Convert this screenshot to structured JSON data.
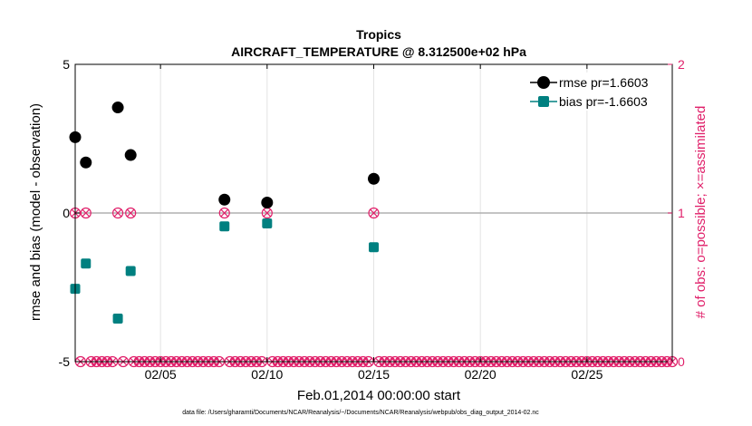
{
  "chart_data": {
    "type": "scatter",
    "title": "Tropics",
    "subtitle": "AIRCRAFT_TEMPERATURE @ 8.312500e+02 hPa",
    "xlabel": "Feb.01,2014 00:00:00 start",
    "ylabel": "rmse and bias (model - observation)",
    "y2label": "# of obs: o=possible; ×=assimilated",
    "footer": "data file: /Users/gharamti/Documents/NCAR/Reanalysis/~/Documents/NCAR/Reanalysis/webpub/obs_diag_output_2014-02.nc",
    "xlim": [
      1,
      29
    ],
    "ylim": [
      -5,
      5
    ],
    "y2lim": [
      0,
      2
    ],
    "xticks": [
      {
        "day": 5,
        "label": "02/05"
      },
      {
        "day": 10,
        "label": "02/10"
      },
      {
        "day": 15,
        "label": "02/15"
      },
      {
        "day": 20,
        "label": "02/20"
      },
      {
        "day": 25,
        "label": "02/25"
      }
    ],
    "yticks": [
      {
        "value": 5,
        "label": "5"
      },
      {
        "value": 0,
        "label": "0"
      },
      {
        "value": -5,
        "label": "-5"
      }
    ],
    "y2ticks": [
      {
        "value": 2,
        "label": "2"
      },
      {
        "value": 1,
        "label": "1"
      },
      {
        "value": 0,
        "label": "0"
      }
    ],
    "grid": true,
    "series": [
      {
        "name": "rmse pr=1.6603",
        "color": "#000000",
        "points": [
          [
            1.0,
            2.55
          ],
          [
            1.5,
            1.7
          ],
          [
            3.0,
            3.55
          ],
          [
            3.6,
            1.95
          ],
          [
            8.0,
            0.45
          ],
          [
            10.0,
            0.35
          ],
          [
            15.0,
            1.15
          ]
        ]
      },
      {
        "name": "bias pr=-1.6603",
        "color": "#008080",
        "points": [
          [
            1.0,
            -2.55
          ],
          [
            1.5,
            -1.7
          ],
          [
            3.0,
            -3.55
          ],
          [
            3.6,
            -1.95
          ],
          [
            8.0,
            -0.45
          ],
          [
            10.0,
            -0.35
          ],
          [
            15.0,
            -1.15
          ]
        ]
      }
    ],
    "obs_counts": {
      "color": "#e0206a",
      "nonzero_days": [
        1.0,
        1.5,
        3.0,
        3.6,
        8.0,
        10.0,
        15.0
      ],
      "nonzero_value": 1,
      "zero_start": 1.0,
      "zero_end": 29.0,
      "zero_step": 0.25,
      "zero_value": 0
    }
  }
}
